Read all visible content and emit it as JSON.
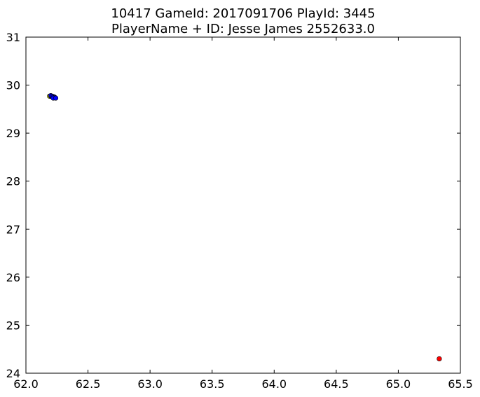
{
  "chart_data": {
    "type": "scatter",
    "title": "10417 GameId: 2017091706 PlayId: 3445",
    "subtitle": "PlayerName + ID: Jesse James 2552633.0",
    "xlabel": "",
    "ylabel": "",
    "xlim": [
      62.0,
      65.5
    ],
    "ylim": [
      24.0,
      31.0
    ],
    "x_ticks": [
      62.0,
      62.5,
      63.0,
      63.5,
      64.0,
      64.5,
      65.0,
      65.5
    ],
    "x_tick_labels": [
      "62.0",
      "62.5",
      "63.0",
      "63.5",
      "64.0",
      "64.5",
      "65.0",
      "65.5"
    ],
    "y_ticks": [
      24,
      25,
      26,
      27,
      28,
      29,
      30,
      31
    ],
    "y_tick_labels": [
      "24",
      "25",
      "26",
      "27",
      "28",
      "29",
      "30",
      "31"
    ],
    "grid": false,
    "series": [
      {
        "color": "#ffff00",
        "points": [
          {
            "x": 62.19,
            "y": 29.77
          },
          {
            "x": 62.2,
            "y": 29.77
          }
        ]
      },
      {
        "color": "#008000",
        "points": [
          {
            "x": 62.21,
            "y": 29.76
          }
        ]
      },
      {
        "color": "#0000ff",
        "points": [
          {
            "x": 62.2,
            "y": 29.78
          },
          {
            "x": 62.21,
            "y": 29.77
          },
          {
            "x": 62.22,
            "y": 29.76
          },
          {
            "x": 62.23,
            "y": 29.75
          },
          {
            "x": 62.23,
            "y": 29.74
          },
          {
            "x": 62.22,
            "y": 29.73
          },
          {
            "x": 62.24,
            "y": 29.73
          }
        ]
      },
      {
        "color": "#ff0000",
        "points": [
          {
            "x": 65.33,
            "y": 24.3
          }
        ]
      }
    ]
  }
}
